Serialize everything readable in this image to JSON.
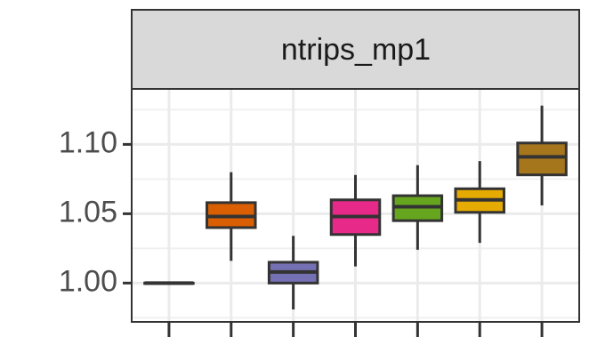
{
  "chart_data": {
    "type": "box",
    "facet_label": "ntrips_mp1",
    "categories": [
      null,
      null,
      null,
      null,
      null,
      null,
      null
    ],
    "boxes": [
      {
        "color": "#333333",
        "whislo": 0.999,
        "q1": 1.0,
        "med": 1.0,
        "q3": 1.0,
        "whishi": 1.001
      },
      {
        "color": "#d95f02",
        "whislo": 1.016,
        "q1": 1.04,
        "med": 1.048,
        "q3": 1.058,
        "whishi": 1.08
      },
      {
        "color": "#7570b3",
        "whislo": 0.981,
        "q1": 1.0,
        "med": 1.008,
        "q3": 1.015,
        "whishi": 1.034
      },
      {
        "color": "#e7298a",
        "whislo": 1.012,
        "q1": 1.035,
        "med": 1.048,
        "q3": 1.06,
        "whishi": 1.078
      },
      {
        "color": "#66a61e",
        "whislo": 1.024,
        "q1": 1.045,
        "med": 1.055,
        "q3": 1.063,
        "whishi": 1.085
      },
      {
        "color": "#e6ab02",
        "whislo": 1.029,
        "q1": 1.051,
        "med": 1.06,
        "q3": 1.068,
        "whishi": 1.088
      },
      {
        "color": "#a6761d",
        "whislo": 1.056,
        "q1": 1.078,
        "med": 1.091,
        "q3": 1.101,
        "whishi": 1.128
      }
    ],
    "ylim": [
      0.972,
      1.14
    ],
    "yticks": [
      {
        "value": 1,
        "label": "1.00"
      },
      1.05,
      {
        "value": 1.1,
        "label": "1.10"
      }
    ],
    "minor_yticks": [
      0.975,
      1.025,
      1.075,
      1.125
    ],
    "grid": true
  }
}
